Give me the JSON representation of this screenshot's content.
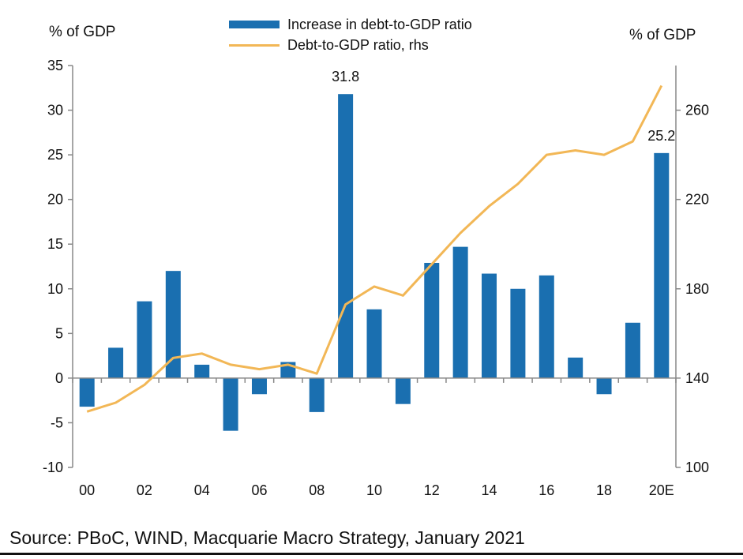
{
  "chart_data": {
    "type": "bar+line",
    "categories": [
      "00",
      "01",
      "02",
      "03",
      "04",
      "05",
      "06",
      "07",
      "08",
      "09",
      "10",
      "11",
      "12",
      "13",
      "14",
      "15",
      "16",
      "17",
      "18",
      "19",
      "20E"
    ],
    "x_tick_labels": [
      "00",
      "02",
      "04",
      "06",
      "08",
      "10",
      "12",
      "14",
      "16",
      "18",
      "20E"
    ],
    "series": [
      {
        "name": "Increase in debt-to-GDP ratio",
        "type": "bar",
        "axis": "left",
        "color": "#1a6fb0",
        "values": [
          -3.2,
          3.4,
          8.6,
          12.0,
          1.5,
          -5.9,
          -1.8,
          1.8,
          -3.8,
          31.8,
          7.7,
          -2.9,
          12.9,
          14.7,
          11.7,
          10.0,
          11.5,
          2.3,
          -1.8,
          6.2,
          25.2
        ]
      },
      {
        "name": "Debt-to-GDP ratio, rhs",
        "type": "line",
        "axis": "right",
        "color": "#f2b756",
        "values": [
          125,
          129,
          137,
          149,
          151,
          146,
          144,
          146,
          142,
          173,
          181,
          177,
          191,
          205,
          217,
          227,
          240,
          242,
          240,
          246,
          271
        ]
      }
    ],
    "left_axis": {
      "label": "% of GDP",
      "min": -10,
      "max": 35,
      "ticks": [
        "-10",
        "-5",
        "0",
        "5",
        "10",
        "15",
        "20",
        "25",
        "30",
        "35"
      ]
    },
    "right_axis": {
      "label": "% of GDP",
      "min": 100,
      "max": 280,
      "ticks": [
        "100",
        "140",
        "180",
        "220",
        "260"
      ]
    },
    "annotations": [
      {
        "category": "09",
        "text": "31.8"
      },
      {
        "category": "20E",
        "text": "25.2"
      }
    ],
    "legend_position": "top-center",
    "grid": false
  },
  "source_text": "Source: PBoC, WIND, Macquarie Macro Strategy, January 2021"
}
